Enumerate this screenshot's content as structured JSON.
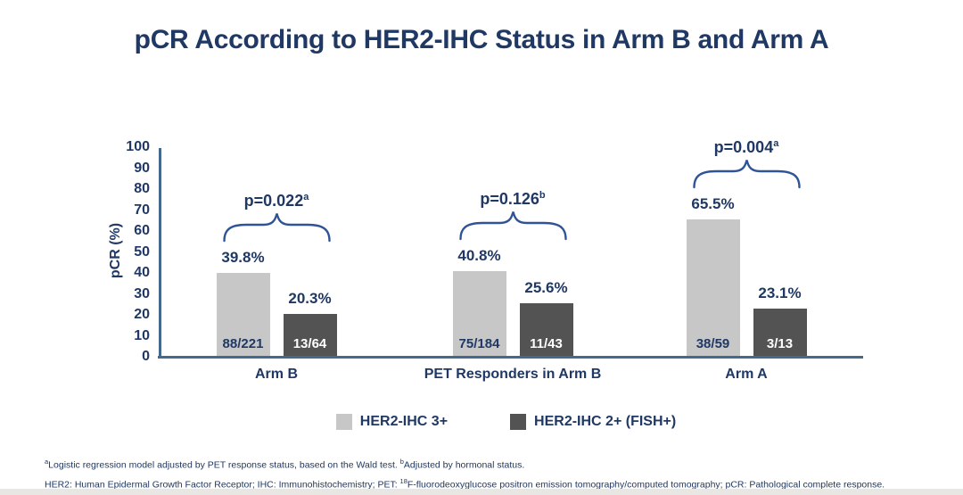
{
  "title": "pCR According to HER2-IHC Status in Arm B and Arm A",
  "colors": {
    "navy": "#1f3864",
    "axis_blue": "#44688e",
    "brace_blue": "#2f5496",
    "light_bar": "#c7c7c7",
    "dark_bar": "#535353",
    "white": "#ffffff",
    "bottom_strip": "#e9e7e3"
  },
  "chart_data": {
    "type": "bar",
    "title": "pCR According to HER2-IHC Status in Arm B and Arm A",
    "xlabel": "",
    "ylabel": "pCR (%)",
    "ylim": [
      0,
      100
    ],
    "yticks": [
      0,
      10,
      20,
      30,
      40,
      50,
      60,
      70,
      80,
      90,
      100
    ],
    "grid": false,
    "legend_position": "bottom",
    "categories": [
      "Arm B",
      "PET Responders in Arm B",
      "Arm A"
    ],
    "series": [
      {
        "name": "HER2-IHC 3+",
        "color": "#c7c7c7",
        "values": [
          39.8,
          40.8,
          65.5
        ],
        "value_labels": [
          "39.8%",
          "40.8%",
          "65.5%"
        ],
        "fractions": [
          "88/221",
          "75/184",
          "38/59"
        ]
      },
      {
        "name": "HER2-IHC 2+ (FISH+)",
        "color": "#535353",
        "values": [
          20.3,
          25.6,
          23.1
        ],
        "value_labels": [
          "20.3%",
          "25.6%",
          "23.1%"
        ],
        "fractions": [
          "13/64",
          "11/43",
          "3/13"
        ]
      }
    ],
    "p_values": [
      {
        "label": "p=0.022",
        "sup": "a"
      },
      {
        "label": "p=0.126",
        "sup": "b"
      },
      {
        "label": "p=0.004",
        "sup": "a"
      }
    ]
  },
  "footnotes": {
    "stat_sup_a": "a",
    "stat_text_a": "Logistic regression model adjusted by PET response status, based on the Wald test. ",
    "stat_sup_b": "b",
    "stat_text_b": "Adjusted by hormonal status.",
    "abbrev_text_1": "HER2: Human Epidermal Growth Factor Receptor; IHC: Immunohistochemistry; PET: ",
    "abbrev_sup": "18",
    "abbrev_text_2": "F-fluorodeoxyglucose positron emission tomography/computed tomography; pCR: Pathological complete response."
  }
}
